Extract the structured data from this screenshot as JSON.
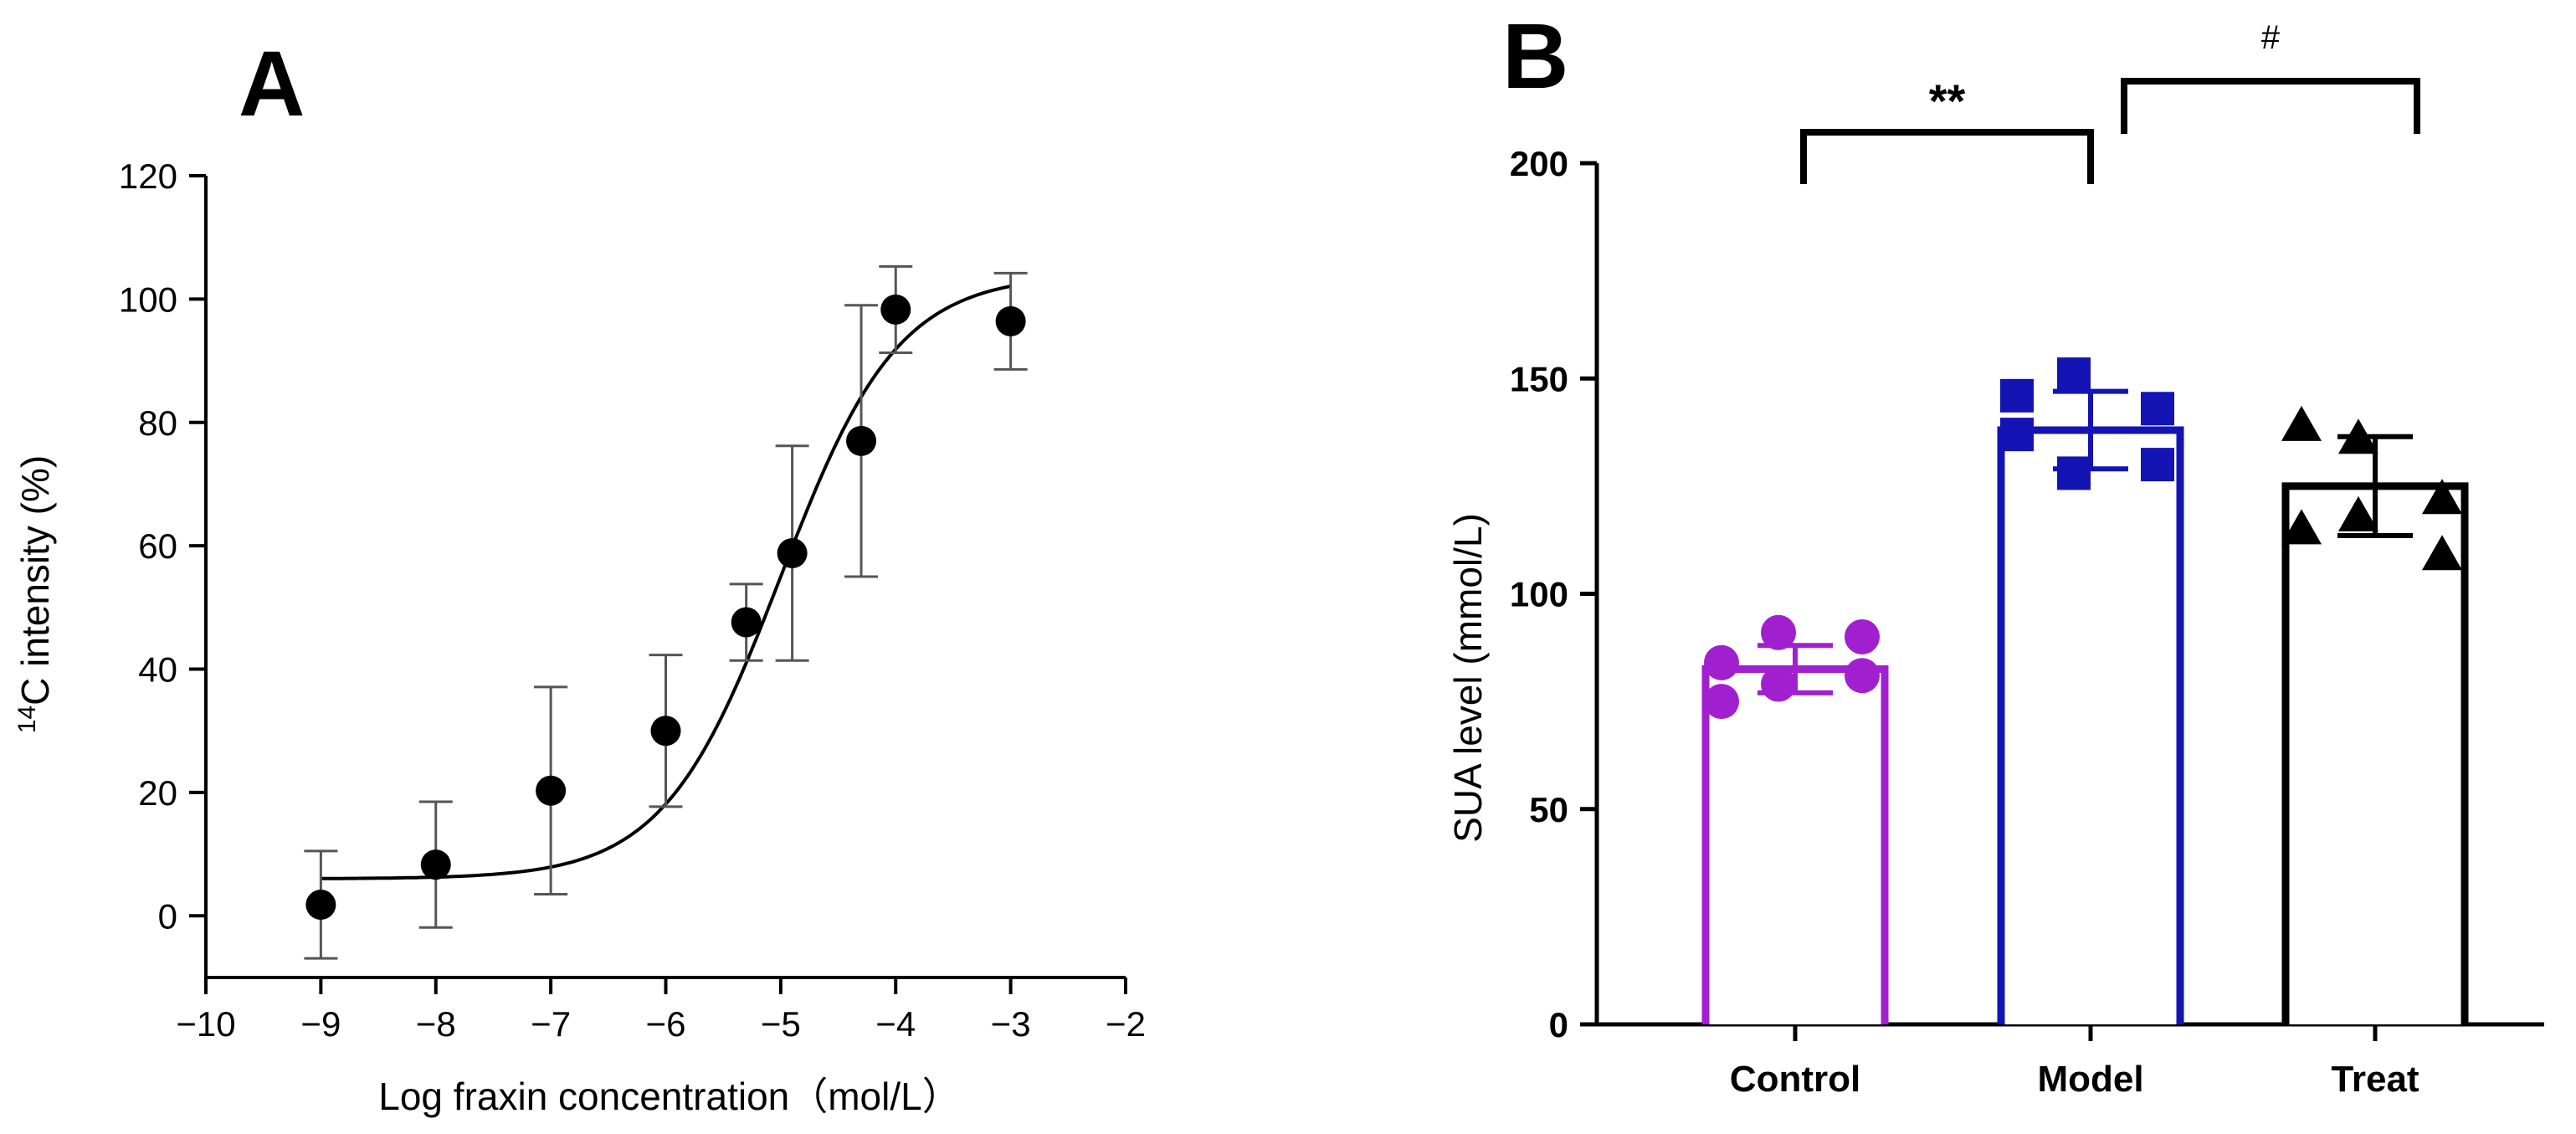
{
  "chart_data": [
    {
      "panel": "A",
      "type": "scatter",
      "xlabel": "Log fraxin concentration（mol/L）",
      "ylabel_sup": "14",
      "ylabel": "C intensity (%)",
      "xlim": [
        -10,
        -2
      ],
      "ylim": [
        -10,
        120
      ],
      "xticks": [
        -10,
        -9,
        -8,
        -7,
        -6,
        -5,
        -4,
        -3,
        -2
      ],
      "xtick_labels": [
        "−10",
        "−9",
        "−8",
        "−7",
        "−6",
        "−5",
        "−4",
        "−3",
        "−2"
      ],
      "yticks": [
        0,
        20,
        40,
        60,
        80,
        100,
        120
      ],
      "ytick_labels": [
        "0",
        "20",
        "40",
        "60",
        "80",
        "100",
        "120"
      ],
      "points": [
        {
          "x": -9,
          "y": 1.8,
          "err": 8.7
        },
        {
          "x": -8,
          "y": 8.3,
          "err": 10.2
        },
        {
          "x": -7,
          "y": 20.3,
          "err": 16.8
        },
        {
          "x": -6,
          "y": 30.0,
          "err": 12.3
        },
        {
          "x": -5.3,
          "y": 47.6,
          "err": 6.2
        },
        {
          "x": -4.9,
          "y": 58.8,
          "err": 17.4
        },
        {
          "x": -4.3,
          "y": 77.0,
          "err": 22.0
        },
        {
          "x": -4.0,
          "y": 98.3,
          "err": 7.0
        },
        {
          "x": -3.0,
          "y": 96.4,
          "err": 7.8
        }
      ],
      "fit": {
        "model": "sigmoid",
        "bottom": 6.0,
        "top": 104.0,
        "logEC50": -5.0,
        "hill": 0.85,
        "x_range": [
          -9,
          -3
        ]
      }
    },
    {
      "panel": "B",
      "type": "bar",
      "ylabel": "SUA level (mmol/L)",
      "ylim": [
        0,
        200
      ],
      "yticks": [
        0,
        50,
        100,
        150,
        200
      ],
      "ytick_labels": [
        "0",
        "50",
        "100",
        "150",
        "200"
      ],
      "categories": [
        "Control",
        "Model",
        "Treat"
      ],
      "values": [
        82.5,
        138,
        125
      ],
      "sd": [
        5.5,
        9,
        11.5
      ],
      "colors": [
        "#a020d0",
        "#1414b4",
        "#000000"
      ],
      "markers": [
        "circle",
        "square",
        "triangle"
      ],
      "points": [
        [
          84,
          91,
          90,
          75,
          79,
          81
        ],
        [
          146,
          151,
          143,
          137,
          128,
          130
        ],
        [
          139,
          136,
          122,
          115,
          118,
          109
        ]
      ],
      "significance": [
        {
          "from": 0,
          "to": 1,
          "label": "**"
        },
        {
          "from": 1,
          "to": 2,
          "label": "#"
        }
      ]
    }
  ]
}
